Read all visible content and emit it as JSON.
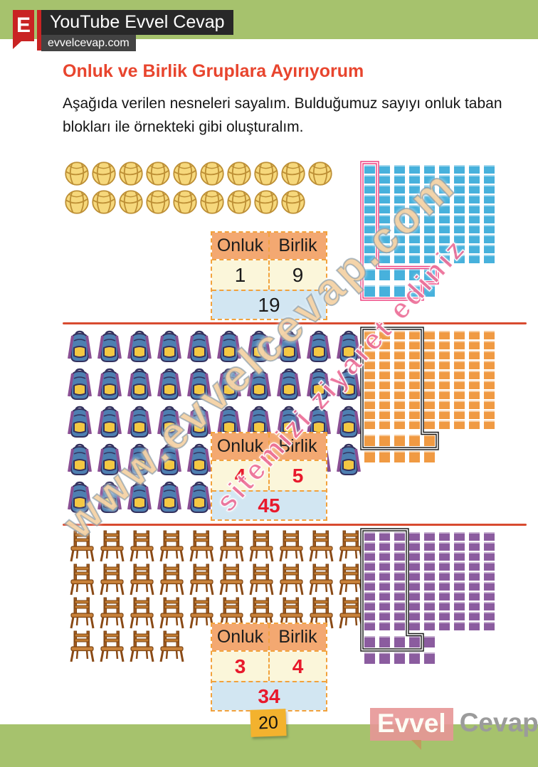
{
  "header": {
    "logo_letter": "E",
    "channel": "YouTube Evvel Cevap",
    "site": "evvelcevap.com"
  },
  "title": "Onluk ve Birlik Gruplara Ayırıyorum",
  "instruction": "Aşağıda verilen nesneleri sayalım. Bulduğumuz sayıyı onluk taban blokları ile örnekteki gibi oluşturalım.",
  "table_headers": {
    "tens": "Onluk",
    "ones": "Birlik"
  },
  "exercises": [
    {
      "name": "volleyballs",
      "icon": "volleyball-icon",
      "rows": [
        10,
        9
      ],
      "item_total": 19,
      "tens": "1",
      "ones": "9",
      "total": "19",
      "value_color": "#1a1a1a",
      "value_bold": false,
      "blocks": {
        "color": "#47b1dc",
        "rods": 9,
        "unit_rows": [
          5,
          5
        ],
        "selected_rods": 1,
        "selected_unit_rows": [
          5,
          4
        ],
        "outline_color": "#ee3f7e"
      }
    },
    {
      "name": "backpacks",
      "icon": "backpack-icon",
      "rows": [
        10,
        10,
        10,
        10,
        5
      ],
      "item_total": 45,
      "tens": "4",
      "ones": "5",
      "total": "45",
      "value_color": "#e8192c",
      "value_bold": true,
      "blocks": {
        "color": "#f09a43",
        "rods": 9,
        "unit_rows": [
          5,
          5
        ],
        "selected_rods": 4,
        "selected_unit_rows": [
          5
        ],
        "outline_color": "#1a1a1a"
      }
    },
    {
      "name": "chairs",
      "icon": "chair-icon",
      "rows": [
        10,
        10,
        10,
        4
      ],
      "item_total": 34,
      "tens": "3",
      "ones": "4",
      "total": "34",
      "value_color": "#e8192c",
      "value_bold": true,
      "blocks": {
        "color": "#8b5c9f",
        "rods": 9,
        "unit_rows": [
          5,
          5
        ],
        "selected_rods": 3,
        "selected_unit_rows": [
          4
        ],
        "outline_color": "#1a1a1a"
      }
    }
  ],
  "watermark": {
    "main": "www.evvelcevap.com",
    "secondary": "sitemizi ziyaret ediniz"
  },
  "footer": {
    "page_number": "20",
    "logo_first": "Evvel",
    "logo_second": "Cevap"
  },
  "colors": {
    "page_green": "#a6c26d",
    "title_red": "#e8452e",
    "divider_red": "#d84b30",
    "table_border_orange": "#f2a23c",
    "table_header_bg": "#f3a871",
    "table_value_bg": "#fbf6da",
    "table_total_bg": "#d2e6f2",
    "answer_red": "#e8192c",
    "blocks_blue": "#47b1dc",
    "blocks_orange": "#f09a43",
    "blocks_purple": "#8b5c9f",
    "example_outline_pink": "#ee3f7e"
  }
}
